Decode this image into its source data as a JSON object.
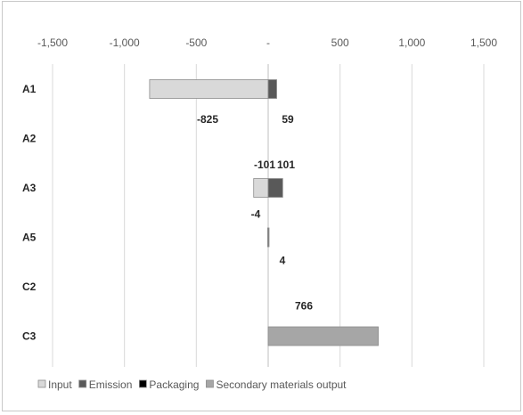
{
  "chart_data": {
    "type": "bar",
    "orientation": "horizontal",
    "stacked": true,
    "categories": [
      "A1",
      "A2",
      "A3",
      "A5",
      "C2",
      "C3"
    ],
    "xlim": [
      -1500,
      1500
    ],
    "x_ticks": [
      -1500,
      -1000,
      -500,
      0,
      500,
      1000,
      1500
    ],
    "x_tick_labels": [
      "-1,500",
      "-1,000",
      "-500",
      "-",
      "500",
      "1,000",
      "1,500"
    ],
    "x_axis_position": "top",
    "grid": "vertical",
    "legend_position": "bottom",
    "series": [
      {
        "name": "Input",
        "color": "#d9d9d9",
        "values": [
          -825,
          0,
          -101,
          -4,
          0,
          0
        ]
      },
      {
        "name": "Emission",
        "color": "#595959",
        "values": [
          59,
          0,
          101,
          4,
          0,
          0
        ]
      },
      {
        "name": "Packaging",
        "color": "#000000",
        "values": [
          0,
          0,
          0,
          0,
          0,
          0
        ]
      },
      {
        "name": "Secondary materials output",
        "color": "#a6a6a6",
        "values": [
          0,
          0,
          0,
          0,
          0,
          766
        ]
      }
    ],
    "data_labels": [
      {
        "category": "A1",
        "text": "-825",
        "value": -825
      },
      {
        "category": "A1",
        "text": "59",
        "value": 59
      },
      {
        "category": "A3",
        "text": "-101",
        "value": -101
      },
      {
        "category": "A3",
        "text": "101",
        "value": 101
      },
      {
        "category": "A5",
        "text": "-4",
        "value": -4
      },
      {
        "category": "A5",
        "text": "4",
        "value": 4
      },
      {
        "category": "C3",
        "text": "766",
        "value": 766
      }
    ]
  }
}
